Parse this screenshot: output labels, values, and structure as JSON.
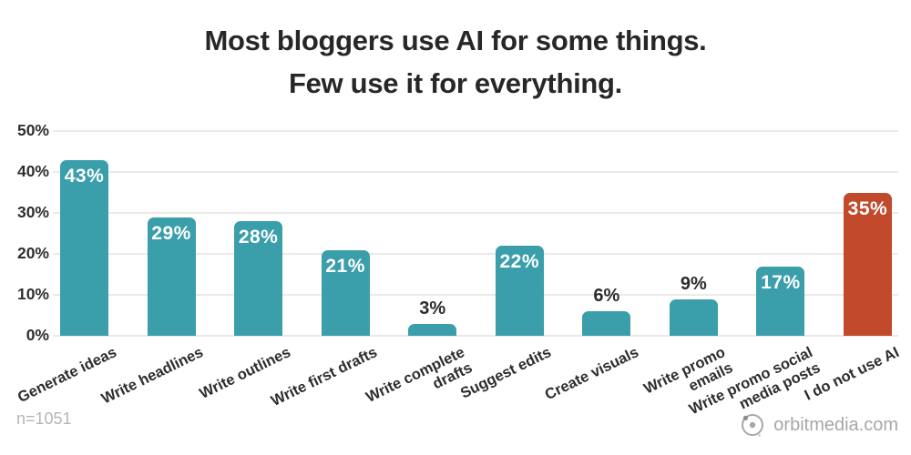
{
  "title": {
    "line1": "Most bloggers use AI for some things.",
    "line2": "Few use it for everything."
  },
  "footer": {
    "sample_size": "n=1051",
    "brand": "orbitmedia.com"
  },
  "colors": {
    "teal": "#3A9EAB",
    "red": "#C14A2C",
    "grid": "#ECEAE8",
    "text_dark": "#2B2B2B",
    "text_muted": "#B8B6B4",
    "logo_gray": "#A9A7A5",
    "value_inside": "#FFFFFF"
  },
  "chart_data": {
    "type": "bar",
    "title": "Most bloggers use AI for some things. Few use it for everything.",
    "categories": [
      "Generate ideas",
      "Write headlines",
      "Write outlines",
      "Write first drafts",
      "Write complete drafts",
      "Suggest edits",
      "Create visuals",
      "Write promo emails",
      "Write promo social media posts",
      "I do not use AI"
    ],
    "category_display": [
      "Generate ideas",
      "Write headlines",
      "Write outlines",
      "Write first drafts",
      "Write complete\ndrafts",
      "Suggest edits",
      "Create visuals",
      "Write promo\nemails",
      "Write promo social\nmedia posts",
      "I do not use AI"
    ],
    "values": [
      43,
      29,
      28,
      21,
      3,
      22,
      6,
      9,
      17,
      35
    ],
    "value_labels": [
      "43%",
      "29%",
      "28%",
      "21%",
      "3%",
      "22%",
      "6%",
      "9%",
      "17%",
      "35%"
    ],
    "label_placement": [
      "inside",
      "inside",
      "inside",
      "inside",
      "outside",
      "inside",
      "outside",
      "outside",
      "inside",
      "inside"
    ],
    "bar_colors": [
      "#3A9EAB",
      "#3A9EAB",
      "#3A9EAB",
      "#3A9EAB",
      "#3A9EAB",
      "#3A9EAB",
      "#3A9EAB",
      "#3A9EAB",
      "#3A9EAB",
      "#C14A2C"
    ],
    "y_ticks": [
      {
        "value": 0,
        "label": "0%"
      },
      {
        "value": 10,
        "label": "10%"
      },
      {
        "value": 20,
        "label": "20%"
      },
      {
        "value": 30,
        "label": "30%"
      },
      {
        "value": 40,
        "label": "40%"
      },
      {
        "value": 50,
        "label": "50%"
      }
    ],
    "ylim": [
      0,
      50
    ],
    "xlabel": "",
    "ylabel": "",
    "grid": true,
    "legend": false,
    "source_note": "n=1051"
  }
}
